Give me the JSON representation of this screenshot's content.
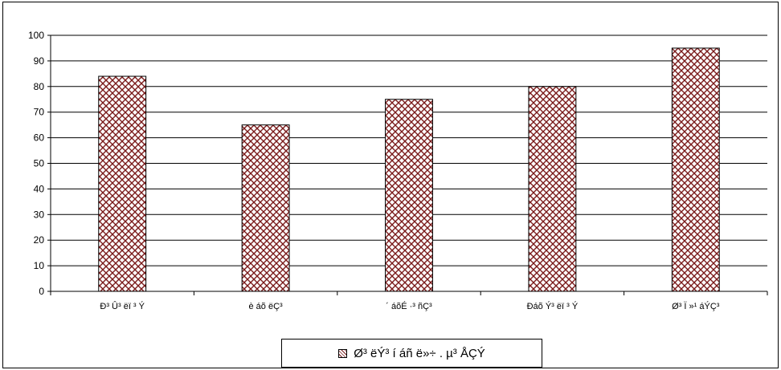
{
  "chart_data": {
    "type": "bar",
    "categories": [
      "Ð³ Û³ ëï ³ Ý",
      "è áõ ëÇ³",
      "´ áõÉ ·³ ñÇ³",
      "Ðáõ Ý³ ëï ³ Ý",
      "Ø³ Ï »¹ áÝÇ³"
    ],
    "series": [
      {
        "name": "Ø³ ëÝ³ í áñ ë»÷ . µ³ ÅÇÝ",
        "values": [
          84,
          65,
          75,
          80,
          95
        ]
      }
    ],
    "yticks": [
      "0",
      "10",
      "20",
      "30",
      "40",
      "50",
      "60",
      "70",
      "80",
      "90",
      "100"
    ],
    "ylim": [
      0,
      100
    ],
    "grid": true,
    "legend_position": "bottom",
    "colors": {
      "bar_pattern": "#7a1a1a",
      "bar_fill": "#ffffff",
      "grid": "#000000"
    }
  },
  "legend": {
    "label": "Ø³ ëÝ³ í áñ ë»÷ . µ³ ÅÇÝ"
  }
}
